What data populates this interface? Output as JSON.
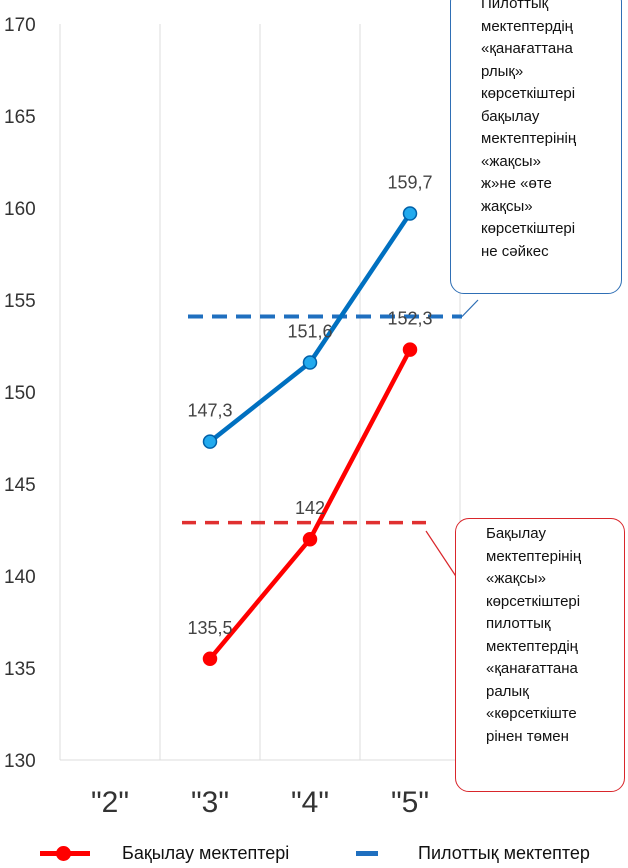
{
  "chart_data": {
    "type": "line",
    "categories": [
      "\"2\"",
      "\"3\"",
      "\"4\"",
      "\"5\""
    ],
    "ylim": [
      130,
      170
    ],
    "yticks": [
      130,
      135,
      140,
      145,
      150,
      155,
      160,
      165,
      170
    ],
    "grid": "vertical",
    "series": [
      {
        "name": "Бақылау мектептері",
        "color": "#ff0000",
        "values": [
          null,
          135.5,
          142,
          152.3
        ],
        "labels": [
          "",
          "135,5",
          "142",
          "152,3"
        ]
      },
      {
        "name": "Пилоттық мектептер",
        "color": "#0070c0",
        "values": [
          null,
          147.3,
          151.6,
          159.7
        ],
        "labels": [
          "",
          "147,3",
          "151,6",
          "159,7"
        ]
      }
    ],
    "reference_lines": [
      {
        "value": 154.1,
        "color": "#1f6fbf"
      },
      {
        "value": 142.9,
        "color": "#e03030"
      }
    ],
    "annotations": [
      "Пилоттық мектептердің «қанағаттана рлық» көрсеткіштері бақылау мектептерінің «жақсы» ж»не «өте жақсы» көрсеткіштері не сәйкес",
      "Бақылау мектептерінің «жақсы» көрсеткіштері пилоттық мектептердің «қанағаттана ралық «көрсеткіште рінен төмен"
    ]
  },
  "callouts": {
    "blue": "Пилоттық\nмектептердің\n«қанағаттана\nрлық»\nкөрсеткіштері\nбақылау\nмектептерінің\n«жақсы»\nж»не «өте\nжақсы»\nкөрсеткіштері\nне сәйкес",
    "red": "Бақылау\nмектептерінің\n«жақсы»\nкөрсеткіштері\nпилоттық\nмектептердің\n«қанағаттана\nралық\n«көрсеткіште\nрінен төмен"
  },
  "legend": {
    "red_label": "Бақылау мектептері",
    "blue_label": "Пилоттық мектептер"
  }
}
